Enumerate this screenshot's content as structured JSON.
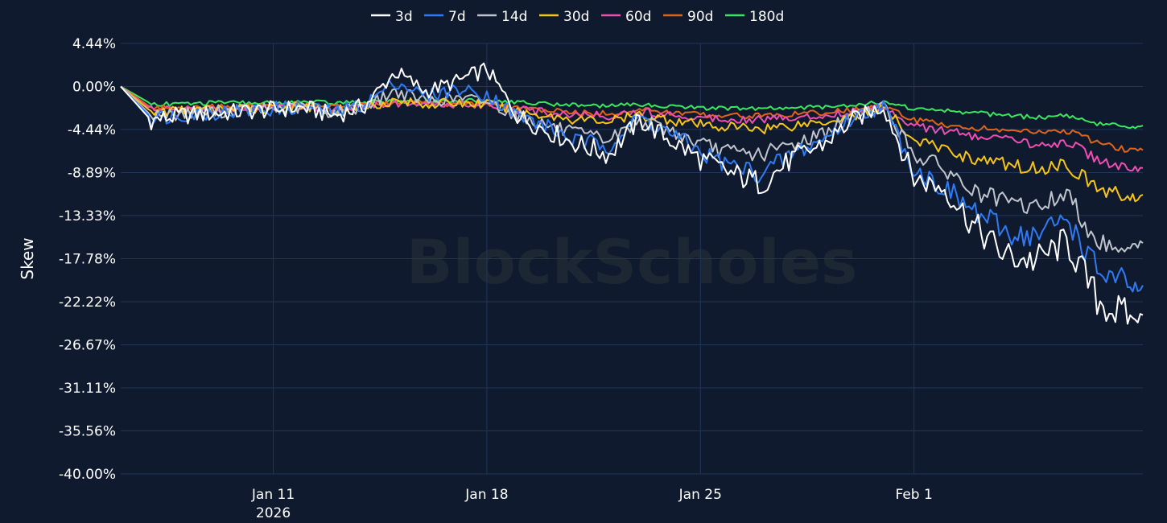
{
  "chart_data": {
    "type": "line",
    "title": "",
    "xlabel": "",
    "ylabel": "Skew",
    "watermark": "BlockScholes",
    "x_range": [
      "2026-01-06",
      "2026-02-08T12:00"
    ],
    "ylim": [
      -40.0,
      4.44
    ],
    "y_ticks": [
      4.44,
      0.0,
      -4.44,
      -8.89,
      -13.33,
      -17.78,
      -22.22,
      -26.67,
      -31.11,
      -35.56,
      -40.0
    ],
    "y_tick_labels": [
      "4.44%",
      "0.00%",
      "-4.44%",
      "-8.89%",
      "-13.33%",
      "-17.78%",
      "-22.22%",
      "-26.67%",
      "-31.11%",
      "-35.56%",
      "-40.00%"
    ],
    "x_ticks": [
      {
        "date": "2026-01-11",
        "label": "Jan 11",
        "sublabel": "2026"
      },
      {
        "date": "2026-01-18",
        "label": "Jan 18",
        "sublabel": ""
      },
      {
        "date": "2026-01-25",
        "label": "Jan 25",
        "sublabel": ""
      },
      {
        "date": "2026-02-01",
        "label": "Feb 1",
        "sublabel": ""
      }
    ],
    "grid": true,
    "legend_position": "top-center",
    "x": [
      "2026-01-06",
      "2026-01-07",
      "2026-01-08",
      "2026-01-09",
      "2026-01-10",
      "2026-01-11",
      "2026-01-12",
      "2026-01-13",
      "2026-01-14",
      "2026-01-15",
      "2026-01-16",
      "2026-01-17",
      "2026-01-18",
      "2026-01-19",
      "2026-01-20",
      "2026-01-21",
      "2026-01-22",
      "2026-01-23",
      "2026-01-24",
      "2026-01-25",
      "2026-01-26",
      "2026-01-27",
      "2026-01-28",
      "2026-01-29",
      "2026-01-30",
      "2026-01-31",
      "2026-02-01",
      "2026-02-02",
      "2026-02-03",
      "2026-02-04",
      "2026-02-05",
      "2026-02-06",
      "2026-02-07",
      "2026-02-08"
    ],
    "series": [
      {
        "name": "3d",
        "color": "#ffffff",
        "values": [
          0.0,
          -3.5,
          -3.0,
          -2.8,
          -2.6,
          -2.4,
          -2.2,
          -3.0,
          -2.0,
          1.5,
          -0.5,
          0.5,
          1.8,
          -3.0,
          -4.6,
          -6.0,
          -7.0,
          -3.5,
          -5.5,
          -7.5,
          -9.0,
          -10.0,
          -7.5,
          -6.0,
          -3.5,
          -2.0,
          -9.5,
          -10.5,
          -14.5,
          -17.5,
          -18.0,
          -16.0,
          -22.0,
          -24.0
        ]
      },
      {
        "name": "7d",
        "color": "#2f7bf5",
        "values": [
          0.0,
          -3.2,
          -2.9,
          -2.7,
          -2.5,
          -2.3,
          -2.1,
          -2.7,
          -1.8,
          0.5,
          -1.0,
          -0.3,
          -0.8,
          -3.0,
          -4.2,
          -5.8,
          -6.0,
          -3.2,
          -4.8,
          -6.8,
          -8.2,
          -9.0,
          -7.0,
          -5.5,
          -3.2,
          -2.0,
          -8.5,
          -10.5,
          -13.0,
          -15.0,
          -15.5,
          -13.5,
          -19.0,
          -20.5
        ]
      },
      {
        "name": "14d",
        "color": "#c0c4cc",
        "values": [
          0.0,
          -3.0,
          -2.8,
          -2.6,
          -2.5,
          -2.3,
          -2.2,
          -2.7,
          -2.0,
          -0.5,
          -1.5,
          -1.2,
          -1.5,
          -3.0,
          -4.0,
          -5.0,
          -5.5,
          -3.5,
          -4.5,
          -6.0,
          -6.8,
          -7.0,
          -6.0,
          -4.8,
          -3.0,
          -2.0,
          -7.0,
          -8.5,
          -11.0,
          -12.0,
          -12.5,
          -11.0,
          -16.0,
          -16.5
        ]
      },
      {
        "name": "30d",
        "color": "#f5c518",
        "values": [
          0.0,
          -2.6,
          -2.5,
          -2.4,
          -2.3,
          -2.2,
          -2.1,
          -2.4,
          -2.0,
          -1.5,
          -1.8,
          -1.7,
          -1.8,
          -2.6,
          -3.0,
          -3.4,
          -3.6,
          -3.0,
          -3.4,
          -4.0,
          -4.2,
          -4.3,
          -4.0,
          -3.6,
          -3.0,
          -2.2,
          -5.5,
          -6.5,
          -7.5,
          -8.0,
          -8.5,
          -8.0,
          -10.5,
          -11.5
        ]
      },
      {
        "name": "60d",
        "color": "#ee4fb0",
        "values": [
          0.0,
          -2.4,
          -2.4,
          -2.3,
          -2.2,
          -2.1,
          -2.0,
          -2.3,
          -2.0,
          -1.7,
          -1.9,
          -1.8,
          -1.9,
          -2.4,
          -2.7,
          -2.9,
          -3.0,
          -2.6,
          -2.9,
          -3.2,
          -3.3,
          -3.4,
          -3.2,
          -3.0,
          -2.6,
          -2.1,
          -4.0,
          -4.6,
          -5.2,
          -5.5,
          -6.0,
          -5.7,
          -7.5,
          -8.5
        ]
      },
      {
        "name": "90d",
        "color": "#e0641a",
        "values": [
          0.0,
          -2.2,
          -2.2,
          -2.1,
          -2.1,
          -2.0,
          -1.9,
          -2.1,
          -1.9,
          -1.7,
          -1.8,
          -1.8,
          -1.8,
          -2.2,
          -2.5,
          -2.7,
          -2.8,
          -2.4,
          -2.7,
          -2.9,
          -3.0,
          -3.0,
          -2.9,
          -2.7,
          -2.4,
          -2.0,
          -3.5,
          -3.9,
          -4.3,
          -4.5,
          -4.8,
          -4.6,
          -5.8,
          -6.5
        ]
      },
      {
        "name": "180d",
        "color": "#39e85e",
        "values": [
          0.0,
          -1.8,
          -1.8,
          -1.7,
          -1.7,
          -1.7,
          -1.6,
          -1.7,
          -1.6,
          -1.5,
          -1.6,
          -1.5,
          -1.5,
          -1.6,
          -1.8,
          -1.9,
          -2.0,
          -1.9,
          -2.0,
          -2.2,
          -2.3,
          -2.3,
          -2.2,
          -2.1,
          -1.9,
          -1.6,
          -2.3,
          -2.5,
          -2.7,
          -3.0,
          -3.2,
          -3.0,
          -3.8,
          -4.2
        ]
      }
    ]
  }
}
